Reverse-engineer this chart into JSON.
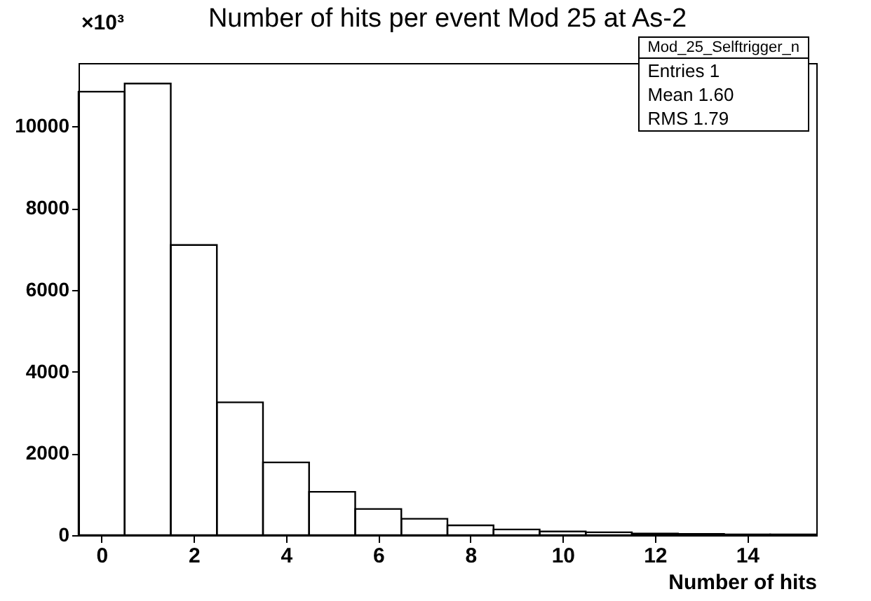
{
  "chart_data": {
    "type": "histogram",
    "title": "Number of hits per event Mod 25 at As-2",
    "xlabel": "Number of hits",
    "bins": [
      -0.5,
      0.5,
      1.5,
      2.5,
      3.5,
      4.5,
      5.5,
      6.5,
      7.5,
      8.5,
      9.5,
      10.5,
      11.5,
      12.5,
      13.5,
      14.5,
      15.5
    ],
    "values": [
      10850,
      11050,
      7100,
      3250,
      1780,
      1060,
      640,
      400,
      240,
      140,
      90,
      70,
      40,
      30,
      20,
      20
    ],
    "color": "#000000",
    "xlim": [
      -0.5,
      15.5
    ],
    "xticks": [
      0,
      2,
      4,
      6,
      8,
      10,
      12,
      14
    ],
    "ylim": [
      0,
      11550
    ],
    "yticks": [
      0,
      2000,
      4000,
      6000,
      8000,
      10000
    ],
    "grid": false,
    "annotations": [
      "×10³",
      "Mod_25_Selftrigger_n",
      "Entries 1",
      "Mean 1.60",
      "RMS 1.79"
    ]
  }
}
